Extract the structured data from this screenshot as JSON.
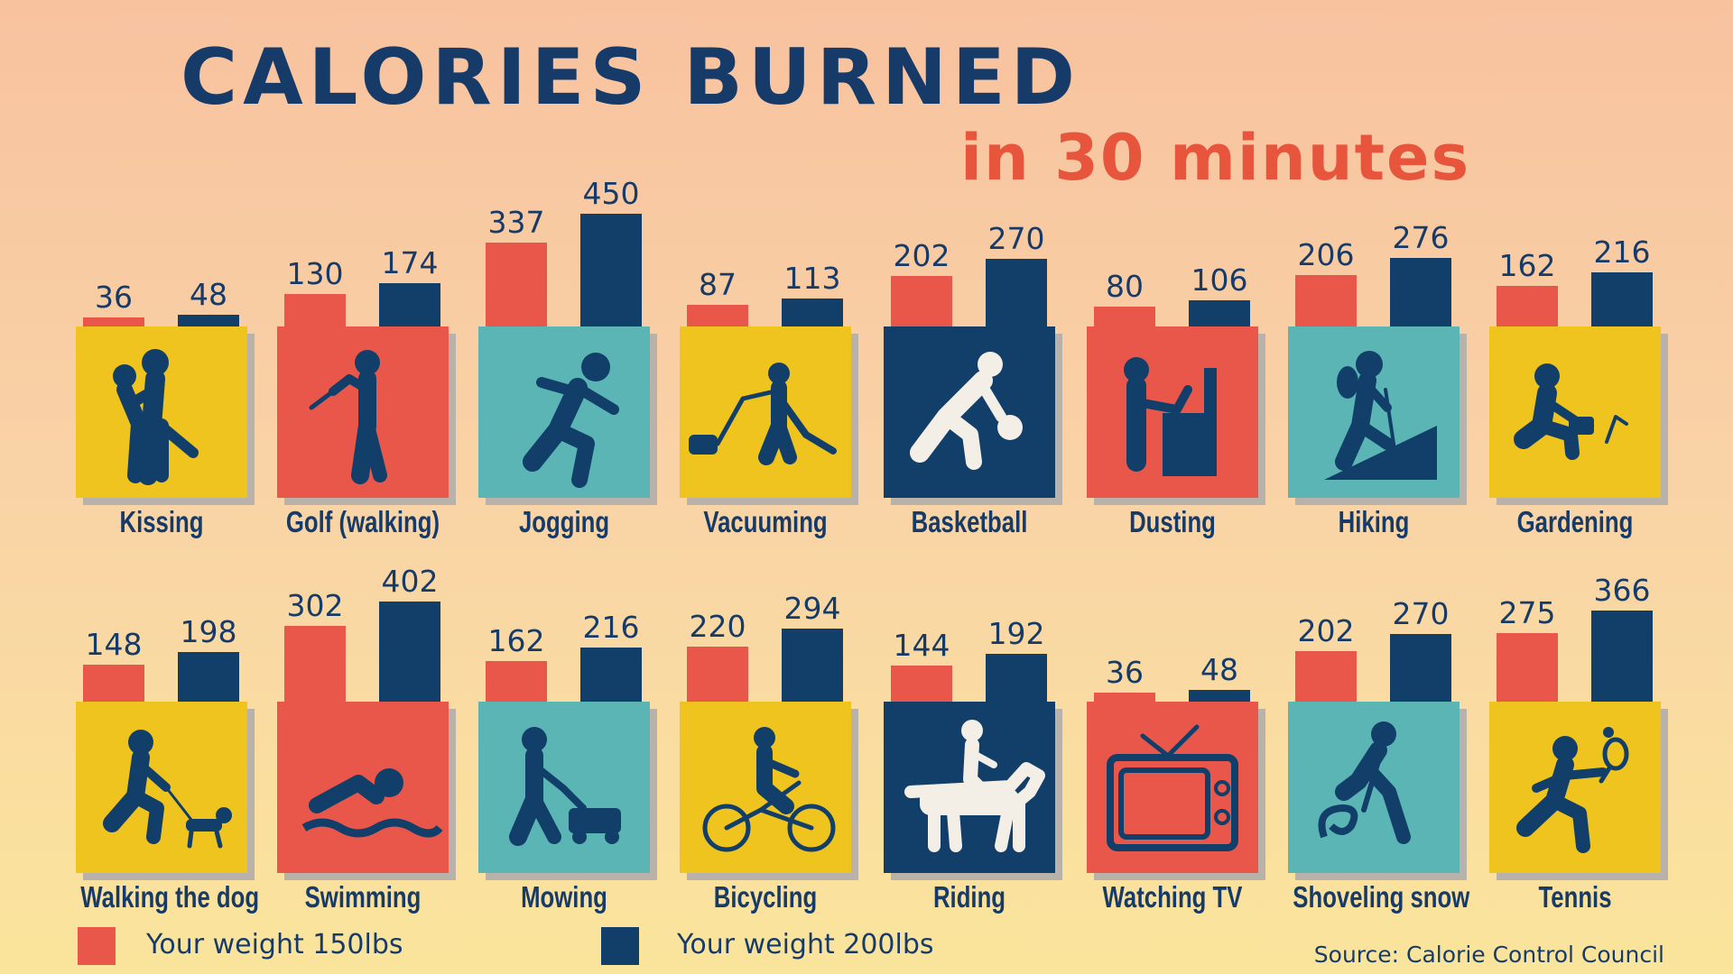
{
  "title": "CALORIES BURNED",
  "subtitle": "in 30 minutes",
  "legend": [
    {
      "label": "Your weight 150lbs",
      "color": "#e8574a"
    },
    {
      "label": "Your weight 200lbs",
      "color": "#123e6a"
    }
  ],
  "source": "Source: Calorie Control Council",
  "chart_data": {
    "type": "bar",
    "series": [
      {
        "name": "Your weight 150lbs",
        "values": [
          36,
          130,
          337,
          87,
          202,
          80,
          206,
          162,
          148,
          302,
          162,
          220,
          144,
          36,
          202,
          275
        ]
      },
      {
        "name": "Your weight 200lbs",
        "values": [
          48,
          174,
          450,
          113,
          270,
          106,
          276,
          216,
          198,
          402,
          216,
          294,
          192,
          48,
          270,
          366
        ]
      }
    ],
    "categories": [
      "Kissing",
      "Golf (walking)",
      "Jogging",
      "Vacuuming",
      "Basketball",
      "Dusting",
      "Hiking",
      "Gardening",
      "Walking the dog",
      "Swimming",
      "Mowing",
      "Bicycling",
      "Riding",
      "Watching TV",
      "Shoveling snow",
      "Tennis"
    ],
    "tile_colors": [
      "#efc41f",
      "#e8574a",
      "#5ab5b4",
      "#efc41f",
      "#123e6a",
      "#e8574a",
      "#5ab5b4",
      "#efc41f",
      "#efc41f",
      "#e8574a",
      "#5ab5b4",
      "#efc41f",
      "#123e6a",
      "#e8574a",
      "#5ab5b4",
      "#efc41f"
    ],
    "icons": [
      "kissing-icon",
      "golf-icon",
      "jogging-icon",
      "vacuuming-icon",
      "basketball-icon",
      "dusting-icon",
      "hiking-icon",
      "gardening-icon",
      "walking-dog-icon",
      "swimming-icon",
      "mowing-icon",
      "bicycling-icon",
      "riding-icon",
      "watching-tv-icon",
      "shoveling-snow-icon",
      "tennis-icon"
    ]
  }
}
